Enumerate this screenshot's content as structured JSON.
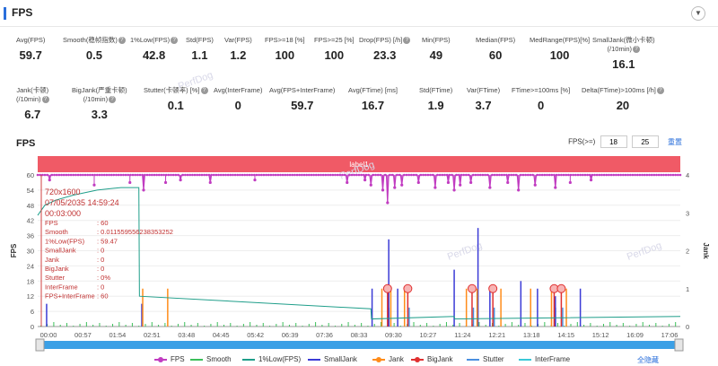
{
  "header": {
    "title": "FPS",
    "collapse_icon": "chevron-down-icon"
  },
  "stats_row1": [
    {
      "label": "Avg(FPS)",
      "value": "59.7",
      "help": false
    },
    {
      "label": "Smooth(稳帧指数)",
      "value": "0.5",
      "help": true
    },
    {
      "label": "1%Low(FPS)",
      "value": "42.8",
      "help": true
    },
    {
      "label": "Std(FPS)",
      "value": "1.1",
      "help": false
    },
    {
      "label": "Var(FPS)",
      "value": "1.2",
      "help": false
    },
    {
      "label": "FPS>=18 [%]",
      "value": "100",
      "help": false
    },
    {
      "label": "FPS>=25 [%]",
      "value": "100",
      "help": false
    },
    {
      "label": "Drop(FPS) [/h]",
      "value": "23.3",
      "help": true
    },
    {
      "label": "Min(FPS)",
      "value": "49",
      "help": false
    },
    {
      "label": "Median(FPS)",
      "value": "60",
      "help": false
    },
    {
      "label": "MedRange(FPS)[%]",
      "value": "100",
      "help": false
    },
    {
      "label": "SmallJank(微小卡顿)",
      "label2": "(/10min)",
      "value": "16.1",
      "help": true
    }
  ],
  "stats_row2": [
    {
      "label": "Jank(卡顿)",
      "label2": "(/10min)",
      "value": "6.7",
      "help": true
    },
    {
      "label": "BigJank(严重卡顿)",
      "label2": "(/10min)",
      "value": "3.3",
      "help": true
    },
    {
      "label": "Stutter(卡顿率) [%]",
      "value": "0.1",
      "help": true
    },
    {
      "label": "Avg(InterFrame)",
      "value": "0",
      "help": false
    },
    {
      "label": "Avg(FPS+InterFrame)",
      "value": "59.7",
      "help": false
    },
    {
      "label": "Avg(FTime) [ms]",
      "value": "16.7",
      "help": false
    },
    {
      "label": "Std(FTime)",
      "value": "1.9",
      "help": false
    },
    {
      "label": "Var(FTime)",
      "value": "3.7",
      "help": false
    },
    {
      "label": "FTime>=100ms [%]",
      "value": "0",
      "help": false
    },
    {
      "label": "Delta(FTime)>100ms [/h]",
      "value": "20",
      "help": true
    }
  ],
  "chart_title": "FPS",
  "fps_threshold": {
    "label": "FPS(>=)",
    "values": [
      "18",
      "25"
    ],
    "reset_label": "重置"
  },
  "label_band": "label1",
  "watermark": "PerfDog",
  "tooltip": {
    "resolution": "720x1600",
    "date": "07/05/2035 14:59:24",
    "time": "00:03:000",
    "rows": [
      {
        "k": "FPS",
        "v": ": 60"
      },
      {
        "k": "Smooth",
        "v": ": 0.011559556238353252"
      },
      {
        "k": "1%Low(FPS)",
        "v": ": 59.47"
      },
      {
        "k": "SmallJank",
        "v": ": 0"
      },
      {
        "k": "Jank",
        "v": ": 0"
      },
      {
        "k": "BigJank",
        "v": ": 0"
      },
      {
        "k": "Stutter",
        "v": ": 0%"
      },
      {
        "k": "InterFrame",
        "v": ": 0"
      },
      {
        "k": "FPS+InterFrame",
        "v": ": 60"
      }
    ]
  },
  "legend": [
    {
      "name": "FPS",
      "color": "#c13cc1",
      "dot": true
    },
    {
      "name": "Smooth",
      "color": "#3cbf5a",
      "dot": false
    },
    {
      "name": "1%Low(FPS)",
      "color": "#1f9e8a",
      "dot": false
    },
    {
      "name": "SmallJank",
      "color": "#3b3bd6",
      "dot": false
    },
    {
      "name": "Jank",
      "color": "#ff8c1a",
      "dot": true
    },
    {
      "name": "BigJank",
      "color": "#e03030",
      "dot": true
    },
    {
      "name": "Stutter",
      "color": "#4a8fe0",
      "dot": false
    },
    {
      "name": "InterFrame",
      "color": "#3ac8d8",
      "dot": false
    }
  ],
  "hide_all_label": "全隐藏",
  "chart_data": {
    "type": "line",
    "xlabel": "",
    "ylabel": "FPS",
    "y2label": "Jank",
    "ylim": [
      0,
      60
    ],
    "y2lim": [
      0,
      4
    ],
    "yticks": [
      0,
      6,
      12,
      18,
      24,
      30,
      36,
      42,
      48,
      54,
      60
    ],
    "y2ticks": [
      0,
      1,
      2,
      3,
      4
    ],
    "xticks": [
      "00:00",
      "00:57",
      "01:54",
      "02:51",
      "03:48",
      "04:45",
      "05:42",
      "06:39",
      "07:36",
      "08:33",
      "09:30",
      "10:27",
      "11:24",
      "12:21",
      "13:18",
      "14:15",
      "15:12",
      "16:09",
      "17:06"
    ],
    "x_range_seconds": [
      0,
      1080
    ],
    "series": [
      {
        "name": "FPS",
        "baseline": 60,
        "dips": [
          [
            20,
            58
          ],
          [
            95,
            56
          ],
          [
            155,
            57
          ],
          [
            178,
            54
          ],
          [
            215,
            57
          ],
          [
            240,
            58
          ],
          [
            290,
            57
          ],
          [
            365,
            58
          ],
          [
            520,
            57
          ],
          [
            550,
            58
          ],
          [
            560,
            56
          ],
          [
            580,
            54
          ],
          [
            588,
            49
          ],
          [
            600,
            55
          ],
          [
            612,
            56
          ],
          [
            640,
            57
          ],
          [
            668,
            55
          ],
          [
            690,
            57
          ],
          [
            700,
            54
          ],
          [
            710,
            56
          ],
          [
            728,
            57
          ],
          [
            760,
            55
          ],
          [
            790,
            57
          ],
          [
            808,
            54
          ],
          [
            836,
            56
          ],
          [
            870,
            55
          ],
          [
            895,
            57
          ],
          [
            930,
            58
          ]
        ]
      },
      {
        "name": "1%Low(FPS)",
        "points": [
          [
            0,
            44
          ],
          [
            12,
            48
          ],
          [
            30,
            50
          ],
          [
            60,
            52
          ],
          [
            100,
            54
          ],
          [
            140,
            55
          ],
          [
            170,
            55
          ],
          [
            171,
            12
          ],
          [
            560,
            7
          ],
          [
            561,
            3
          ],
          [
            700,
            4
          ],
          [
            701,
            3
          ],
          [
            1080,
            4
          ]
        ]
      },
      {
        "name": "SmallJank",
        "spikes": [
          [
            15,
            0.6
          ],
          [
            175,
            0.6
          ],
          [
            562,
            1.0
          ],
          [
            590,
            2.3
          ],
          [
            605,
            1.0
          ],
          [
            700,
            1.5
          ],
          [
            740,
            2.6
          ],
          [
            760,
            1.0
          ],
          [
            812,
            1.2
          ],
          [
            840,
            1.0
          ],
          [
            870,
            0.8
          ],
          [
            912,
            1.0
          ]
        ]
      },
      {
        "name": "Jank",
        "spikes": [
          [
            178,
            1.0
          ],
          [
            220,
            1.0
          ],
          [
            580,
            1.0
          ],
          [
            595,
            1.0
          ],
          [
            618,
            1.0
          ],
          [
            722,
            1.0
          ],
          [
            740,
            1.0
          ],
          [
            780,
            1.0
          ],
          [
            830,
            1.0
          ],
          [
            865,
            1.0
          ],
          [
            890,
            1.0
          ]
        ]
      },
      {
        "name": "BigJank",
        "markers": [
          [
            588,
            1.0
          ],
          [
            622,
            1.0
          ],
          [
            730,
            1.0
          ],
          [
            765,
            1.0
          ],
          [
            868,
            1.0
          ],
          [
            880,
            1.0
          ]
        ]
      },
      {
        "name": "Stutter",
        "spikes": [
          [
            588,
            0.5
          ],
          [
            622,
            0.5
          ],
          [
            730,
            0.5
          ],
          [
            765,
            0.5
          ],
          [
            868,
            0.5
          ],
          [
            880,
            0.5
          ]
        ]
      }
    ]
  }
}
